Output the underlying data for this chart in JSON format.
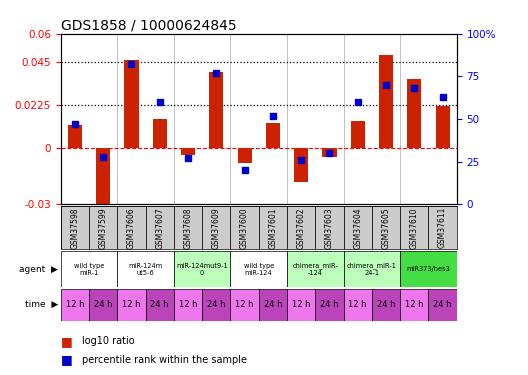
{
  "title": "GDS1858 / 10000624845",
  "samples": [
    "GSM37598",
    "GSM37599",
    "GSM37606",
    "GSM37607",
    "GSM37608",
    "GSM37609",
    "GSM37600",
    "GSM37601",
    "GSM37602",
    "GSM37603",
    "GSM37604",
    "GSM37605",
    "GSM37610",
    "GSM37611"
  ],
  "log10_ratio": [
    0.012,
    -0.036,
    0.046,
    0.015,
    -0.004,
    0.04,
    -0.008,
    0.013,
    -0.018,
    -0.005,
    0.014,
    0.049,
    0.036,
    0.022
  ],
  "percentile": [
    47,
    28,
    82,
    60,
    27,
    77,
    20,
    52,
    26,
    30,
    60,
    70,
    68,
    63
  ],
  "ylim_left": [
    -0.03,
    0.06
  ],
  "ylim_right": [
    0,
    100
  ],
  "yticks_left": [
    -0.03,
    0,
    0.0225,
    0.045,
    0.06
  ],
  "yticks_right": [
    0,
    25,
    50,
    75,
    100
  ],
  "dotted_lines": [
    0.0225,
    0.045
  ],
  "agents": [
    {
      "label": "wild type\nmiR-1",
      "cols": [
        0,
        1
      ],
      "color": "#ffffff"
    },
    {
      "label": "miR-124m\nut5-6",
      "cols": [
        2,
        3
      ],
      "color": "#ffffff"
    },
    {
      "label": "miR-124mut9-1\n0",
      "cols": [
        4,
        5
      ],
      "color": "#bbffbb"
    },
    {
      "label": "wild type\nmiR-124",
      "cols": [
        6,
        7
      ],
      "color": "#ffffff"
    },
    {
      "label": "chimera_miR-\n-124",
      "cols": [
        8,
        9
      ],
      "color": "#bbffbb"
    },
    {
      "label": "chimera_miR-1\n24-1",
      "cols": [
        10,
        11
      ],
      "color": "#bbffbb"
    },
    {
      "label": "miR373/hes3",
      "cols": [
        12,
        13
      ],
      "color": "#44dd44"
    }
  ],
  "time_labels": [
    "12 h",
    "24 h",
    "12 h",
    "24 h",
    "12 h",
    "24 h",
    "12 h",
    "24 h",
    "12 h",
    "24 h",
    "12 h",
    "24 h",
    "12 h",
    "24 h"
  ],
  "bar_color": "#cc2200",
  "dot_color": "#0000cc",
  "legend_bar_label": "log10 ratio",
  "legend_dot_label": "percentile rank within the sample",
  "group_boundaries": [
    1.5,
    3.5,
    5.5,
    7.5,
    9.5,
    11.5
  ]
}
